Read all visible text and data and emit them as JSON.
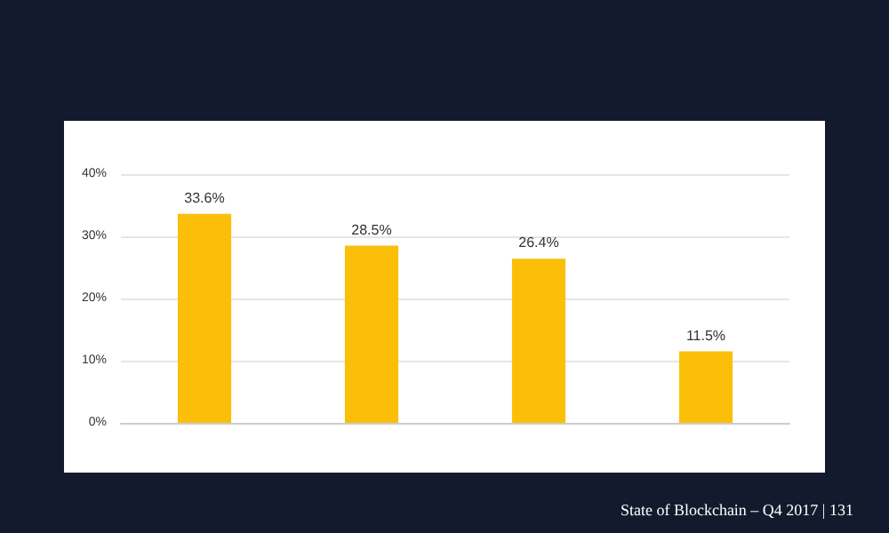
{
  "chart_data": {
    "type": "bar",
    "categories": [
      null,
      null,
      null,
      null
    ],
    "values": [
      33.6,
      28.5,
      26.4,
      11.5
    ],
    "value_labels": [
      "33.6%",
      "28.5%",
      "26.4%",
      "11.5%"
    ],
    "color": "#fbbf0a",
    "ylim": [
      0,
      40
    ],
    "yticks": [
      {
        "value": 0,
        "label": "0%"
      },
      {
        "value": 10,
        "label": "10%"
      },
      {
        "value": 20,
        "label": "20%"
      },
      {
        "value": 30,
        "label": "30%"
      },
      {
        "value": 40,
        "label": "40%"
      }
    ],
    "grid": "y",
    "annotations": [
      "State of Blockchain – Q4 2017 | 131"
    ]
  }
}
